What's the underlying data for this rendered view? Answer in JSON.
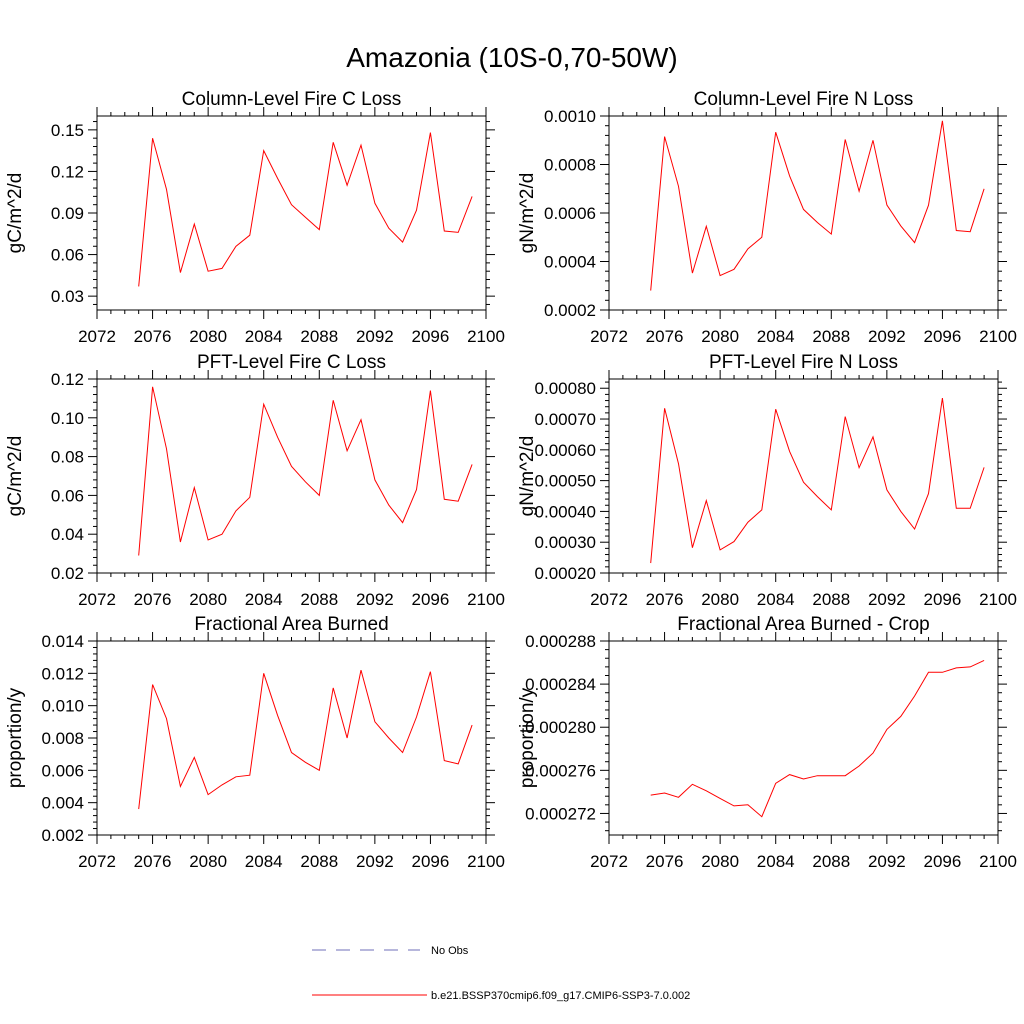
{
  "figure": {
    "title": "Amazonia (10S-0,70-50W)",
    "legend": [
      {
        "label": "No Obs",
        "color": "#6f6fb8",
        "style": "dashed"
      },
      {
        "label": "b.e21.BSSP370cmip6.f09_g17.CMIP6-SSP3-7.0.002",
        "color": "#ff0000",
        "style": "solid"
      }
    ]
  },
  "chart_data": [
    {
      "type": "line",
      "title": "Column-Level Fire C Loss",
      "xlabel": "",
      "ylabel": "gC/m^2/d",
      "xlim": [
        2072,
        2100
      ],
      "ylim": [
        0.02,
        0.16
      ],
      "xticks": [
        2072,
        2076,
        2080,
        2084,
        2088,
        2092,
        2096,
        2100
      ],
      "xtick_labels": [
        "2072",
        "2076",
        "2080",
        "2084",
        "2088",
        "2092",
        "2096",
        "2100"
      ],
      "yticks": [
        0.03,
        0.06,
        0.09,
        0.12,
        0.15
      ],
      "ytick_labels": [
        "0.03",
        "0.06",
        "0.09",
        "0.12",
        "0.15"
      ],
      "series": [
        {
          "name": "b.e21.BSSP370cmip6.f09_g17.CMIP6-SSP3-7.0.002",
          "color": "#ff0000",
          "x": [
            2075,
            2076,
            2077,
            2078,
            2079,
            2080,
            2081,
            2082,
            2083,
            2084,
            2085,
            2086,
            2087,
            2088,
            2089,
            2090,
            2091,
            2092,
            2093,
            2094,
            2095,
            2096,
            2097,
            2098,
            2099
          ],
          "y": [
            0.037,
            0.144,
            0.107,
            0.047,
            0.082,
            0.048,
            0.05,
            0.066,
            0.074,
            0.135,
            0.115,
            0.096,
            0.087,
            0.078,
            0.141,
            0.11,
            0.139,
            0.097,
            0.079,
            0.069,
            0.092,
            0.148,
            0.077,
            0.076,
            0.102
          ]
        }
      ]
    },
    {
      "type": "line",
      "title": "Column-Level Fire N Loss",
      "xlabel": "",
      "ylabel": "gN/m^2/d",
      "xlim": [
        2072,
        2100
      ],
      "ylim": [
        0.0002,
        0.001
      ],
      "xticks": [
        2072,
        2076,
        2080,
        2084,
        2088,
        2092,
        2096,
        2100
      ],
      "xtick_labels": [
        "2072",
        "2076",
        "2080",
        "2084",
        "2088",
        "2092",
        "2096",
        "2100"
      ],
      "yticks": [
        0.0002,
        0.0004,
        0.0006,
        0.0008,
        0.001
      ],
      "ytick_labels": [
        "0.0002",
        "0.0004",
        "0.0006",
        "0.0008",
        "0.0010"
      ],
      "series": [
        {
          "name": "b.e21.BSSP370cmip6.f09_g17.CMIP6-SSP3-7.0.002",
          "color": "#ff0000",
          "x": [
            2075,
            2076,
            2077,
            2078,
            2079,
            2080,
            2081,
            2082,
            2083,
            2084,
            2085,
            2086,
            2087,
            2088,
            2089,
            2090,
            2091,
            2092,
            2093,
            2094,
            2095,
            2096,
            2097,
            2098,
            2099
          ],
          "y": [
            0.00028,
            0.000915,
            0.00071,
            0.000352,
            0.000545,
            0.000342,
            0.000368,
            0.000452,
            0.0005,
            0.000933,
            0.000753,
            0.000615,
            0.000561,
            0.000513,
            0.000903,
            0.00069,
            0.0009,
            0.000633,
            0.000547,
            0.000478,
            0.000632,
            0.00098,
            0.000528,
            0.000523,
            0.0007
          ]
        }
      ]
    },
    {
      "type": "line",
      "title": "PFT-Level Fire C Loss",
      "xlabel": "",
      "ylabel": "gC/m^2/d",
      "xlim": [
        2072,
        2100
      ],
      "ylim": [
        0.02,
        0.12
      ],
      "xticks": [
        2072,
        2076,
        2080,
        2084,
        2088,
        2092,
        2096,
        2100
      ],
      "xtick_labels": [
        "2072",
        "2076",
        "2080",
        "2084",
        "2088",
        "2092",
        "2096",
        "2100"
      ],
      "yticks": [
        0.02,
        0.04,
        0.06,
        0.08,
        0.1,
        0.12
      ],
      "ytick_labels": [
        "0.02",
        "0.04",
        "0.06",
        "0.08",
        "0.10",
        "0.12"
      ],
      "series": [
        {
          "name": "b.e21.BSSP370cmip6.f09_g17.CMIP6-SSP3-7.0.002",
          "color": "#ff0000",
          "x": [
            2075,
            2076,
            2077,
            2078,
            2079,
            2080,
            2081,
            2082,
            2083,
            2084,
            2085,
            2086,
            2087,
            2088,
            2089,
            2090,
            2091,
            2092,
            2093,
            2094,
            2095,
            2096,
            2097,
            2098,
            2099
          ],
          "y": [
            0.029,
            0.116,
            0.084,
            0.036,
            0.064,
            0.037,
            0.04,
            0.052,
            0.059,
            0.107,
            0.09,
            0.075,
            0.067,
            0.06,
            0.109,
            0.083,
            0.099,
            0.068,
            0.055,
            0.046,
            0.063,
            0.114,
            0.058,
            0.057,
            0.076
          ]
        }
      ]
    },
    {
      "type": "line",
      "title": "PFT-Level Fire N Loss",
      "xlabel": "",
      "ylabel": "gN/m^2/d",
      "xlim": [
        2072,
        2100
      ],
      "ylim": [
        0.0002,
        0.00083
      ],
      "xticks": [
        2072,
        2076,
        2080,
        2084,
        2088,
        2092,
        2096,
        2100
      ],
      "xtick_labels": [
        "2072",
        "2076",
        "2080",
        "2084",
        "2088",
        "2092",
        "2096",
        "2100"
      ],
      "yticks": [
        0.0002,
        0.0003,
        0.0004,
        0.0005,
        0.0006,
        0.0007,
        0.0008
      ],
      "ytick_labels": [
        "0.00020",
        "0.00030",
        "0.00040",
        "0.00050",
        "0.00060",
        "0.00070",
        "0.00080"
      ],
      "series": [
        {
          "name": "b.e21.BSSP370cmip6.f09_g17.CMIP6-SSP3-7.0.002",
          "color": "#ff0000",
          "x": [
            2075,
            2076,
            2077,
            2078,
            2079,
            2080,
            2081,
            2082,
            2083,
            2084,
            2085,
            2086,
            2087,
            2088,
            2089,
            2090,
            2091,
            2092,
            2093,
            2094,
            2095,
            2096,
            2097,
            2098,
            2099
          ],
          "y": [
            0.000232,
            0.000735,
            0.000555,
            0.000282,
            0.000435,
            0.000275,
            0.000302,
            0.000365,
            0.000405,
            0.000732,
            0.000595,
            0.000495,
            0.000448,
            0.000405,
            0.000708,
            0.000542,
            0.000642,
            0.00047,
            0.0004,
            0.000343,
            0.000458,
            0.000768,
            0.00041,
            0.00041,
            0.000543
          ]
        }
      ]
    },
    {
      "type": "line",
      "title": "Fractional Area Burned",
      "xlabel": "",
      "ylabel": "proportion/y",
      "xlim": [
        2072,
        2100
      ],
      "ylim": [
        0.002,
        0.014
      ],
      "xticks": [
        2072,
        2076,
        2080,
        2084,
        2088,
        2092,
        2096,
        2100
      ],
      "xtick_labels": [
        "2072",
        "2076",
        "2080",
        "2084",
        "2088",
        "2092",
        "2096",
        "2100"
      ],
      "yticks": [
        0.002,
        0.004,
        0.006,
        0.008,
        0.01,
        0.012,
        0.014
      ],
      "ytick_labels": [
        "0.002",
        "0.004",
        "0.006",
        "0.008",
        "0.010",
        "0.012",
        "0.014"
      ],
      "series": [
        {
          "name": "b.e21.BSSP370cmip6.f09_g17.CMIP6-SSP3-7.0.002",
          "color": "#ff0000",
          "x": [
            2075,
            2076,
            2077,
            2078,
            2079,
            2080,
            2081,
            2082,
            2083,
            2084,
            2085,
            2086,
            2087,
            2088,
            2089,
            2090,
            2091,
            2092,
            2093,
            2094,
            2095,
            2096,
            2097,
            2098,
            2099
          ],
          "y": [
            0.0036,
            0.0113,
            0.0092,
            0.005,
            0.0068,
            0.0045,
            0.0051,
            0.0056,
            0.0057,
            0.012,
            0.0094,
            0.0071,
            0.0065,
            0.006,
            0.0111,
            0.008,
            0.0122,
            0.009,
            0.008,
            0.0071,
            0.0093,
            0.0121,
            0.0066,
            0.0064,
            0.0088
          ]
        }
      ]
    },
    {
      "type": "line",
      "title": "Fractional Area Burned - Crop",
      "xlabel": "",
      "ylabel": "proportion/y",
      "xlim": [
        2072,
        2100
      ],
      "ylim": [
        0.00027,
        0.000288
      ],
      "xticks": [
        2072,
        2076,
        2080,
        2084,
        2088,
        2092,
        2096,
        2100
      ],
      "xtick_labels": [
        "2072",
        "2076",
        "2080",
        "2084",
        "2088",
        "2092",
        "2096",
        "2100"
      ],
      "yticks": [
        0.000272,
        0.000276,
        0.00028,
        0.000284,
        0.000288
      ],
      "ytick_labels": [
        "0.000272",
        "0.000276",
        "0.000280",
        "0.000284",
        "0.000288"
      ],
      "series": [
        {
          "name": "b.e21.BSSP370cmip6.f09_g17.CMIP6-SSP3-7.0.002",
          "color": "#ff0000",
          "x": [
            2075,
            2076,
            2077,
            2078,
            2079,
            2080,
            2081,
            2082,
            2083,
            2084,
            2085,
            2086,
            2087,
            2088,
            2089,
            2090,
            2091,
            2092,
            2093,
            2094,
            2095,
            2096,
            2097,
            2098,
            2099
          ],
          "y": [
            0.0002737,
            0.0002739,
            0.0002735,
            0.0002747,
            0.0002741,
            0.0002734,
            0.0002727,
            0.0002728,
            0.0002717,
            0.0002748,
            0.0002756,
            0.0002752,
            0.0002755,
            0.0002755,
            0.0002755,
            0.0002764,
            0.0002776,
            0.0002798,
            0.000281,
            0.0002829,
            0.0002851,
            0.0002851,
            0.0002855,
            0.0002856,
            0.0002862
          ]
        }
      ]
    }
  ]
}
